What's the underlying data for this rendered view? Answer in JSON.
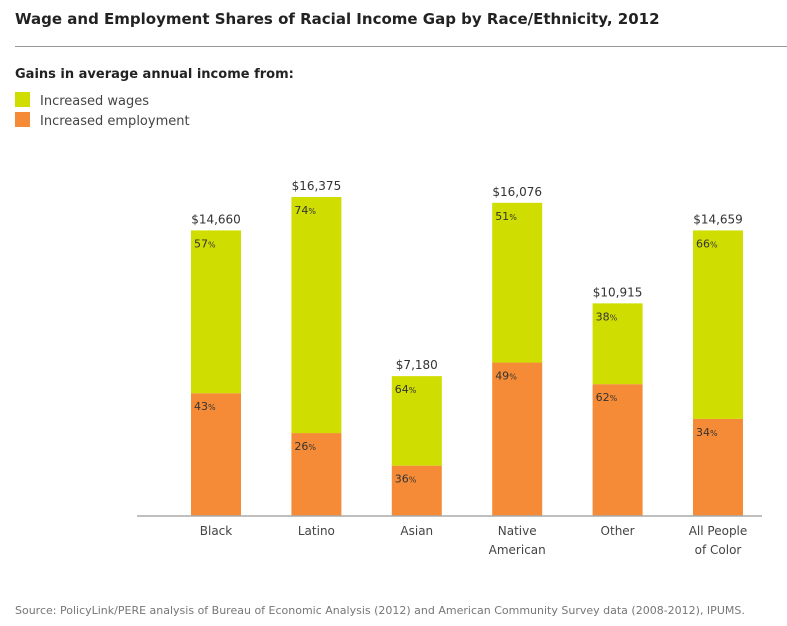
{
  "chart_data": {
    "type": "stacked-bar",
    "title": "Wage and Employment Shares of Racial Income Gap by Race/Ethnicity, 2012",
    "legend_title": "Gains in average annual income from:",
    "legend_placement": "top-left",
    "categories": [
      [
        "Black"
      ],
      [
        "Latino"
      ],
      [
        "Asian"
      ],
      [
        "Native",
        "American"
      ],
      [
        "Other"
      ],
      [
        "All People",
        "of Color"
      ]
    ],
    "totals": [
      14660,
      16375,
      7180,
      16076,
      10915,
      14659
    ],
    "total_labels": [
      "$14,660",
      "$16,375",
      "$7,180",
      "$16,076",
      "$10,915",
      "$14,659"
    ],
    "series": [
      {
        "name": "Increased wages",
        "color": "#cfdd00",
        "percent": [
          57,
          74,
          64,
          51,
          38,
          66
        ]
      },
      {
        "name": "Increased employment",
        "color": "#f58b36",
        "percent": [
          43,
          26,
          36,
          49,
          62,
          34
        ]
      }
    ],
    "grid": false,
    "source": "Source: PolicyLink/PERE analysis of Bureau of Economic Analysis (2012) and American Community Survey data (2008-2012), IPUMS."
  }
}
